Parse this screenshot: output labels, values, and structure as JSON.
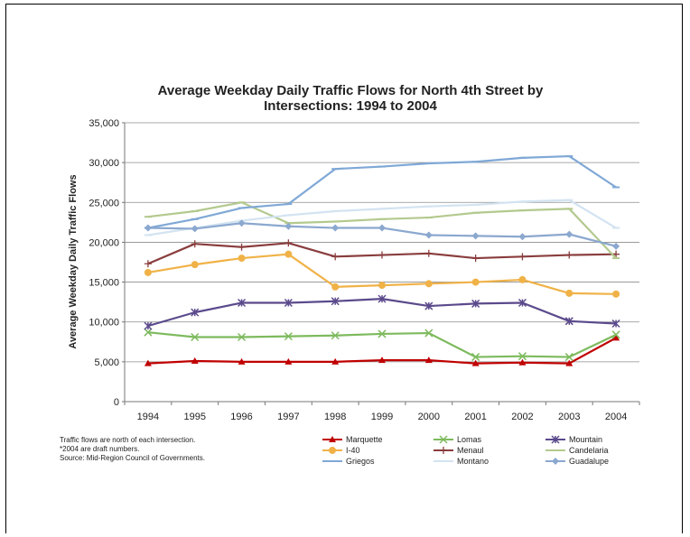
{
  "chart_data": {
    "type": "line",
    "title": [
      "Average Weekday Daily Traffic Flows for North 4th Street by",
      "Intersections: 1994 to 2004"
    ],
    "xlabel": "",
    "ylabel": "Average Weekday Daily Traffic Flows",
    "ylim": [
      0,
      35000
    ],
    "yticks": [
      "0",
      "5,000",
      "10,000",
      "15,000",
      "20,000",
      "25,000",
      "30,000",
      "35,000"
    ],
    "x": [
      "1994",
      "1995",
      "1996",
      "1997",
      "1998",
      "1999",
      "2000",
      "2001",
      "2002",
      "2003",
      "2004"
    ],
    "grid": true,
    "legend": "bottom",
    "series": [
      {
        "name": "Marquette",
        "color": "#c00000",
        "marker": "triangle",
        "values": [
          4800,
          5100,
          5000,
          5000,
          5000,
          5200,
          5200,
          4800,
          4900,
          4800,
          8000
        ]
      },
      {
        "name": "Lomas",
        "color": "#7dba5d",
        "marker": "x",
        "values": [
          8700,
          8100,
          8100,
          8200,
          8300,
          8500,
          8600,
          5600,
          5700,
          5600,
          8400
        ]
      },
      {
        "name": "Mountain",
        "color": "#5b4a8c",
        "marker": "star",
        "values": [
          9500,
          11200,
          12400,
          12400,
          12600,
          12900,
          12000,
          12300,
          12400,
          10100,
          9800
        ]
      },
      {
        "name": "I-40",
        "color": "#f0b247",
        "marker": "circle",
        "values": [
          16200,
          17200,
          18000,
          18500,
          14400,
          14600,
          14800,
          15000,
          15300,
          13600,
          13500
        ]
      },
      {
        "name": "Menaul",
        "color": "#8a3d3d",
        "marker": "plus",
        "values": [
          17300,
          19800,
          19400,
          19900,
          18200,
          18400,
          18600,
          18000,
          18200,
          18400,
          18500
        ]
      },
      {
        "name": "Candelaria",
        "color": "#b3c98e",
        "marker": "dash",
        "values": [
          23200,
          23900,
          25000,
          22400,
          22600,
          22900,
          23100,
          23700,
          24000,
          24200,
          18000
        ]
      },
      {
        "name": "Griegos",
        "color": "#7fa8d6",
        "marker": "dash",
        "values": [
          21800,
          22900,
          24300,
          24800,
          29200,
          29500,
          29900,
          30100,
          30600,
          30800,
          26900
        ]
      },
      {
        "name": "Montano",
        "color": "#d3e3f1",
        "marker": "dash",
        "values": [
          20900,
          21800,
          22700,
          23400,
          23900,
          24200,
          24500,
          24700,
          25100,
          25300,
          21800
        ]
      },
      {
        "name": "Guadalupe",
        "color": "#8ba8cf",
        "marker": "diamond",
        "values": [
          21800,
          21700,
          22400,
          22000,
          21800,
          21800,
          20900,
          20800,
          20700,
          21000,
          19500
        ]
      }
    ]
  },
  "notes": [
    "Traffic flows are north of each intersection.",
    "*2004 are draft numbers.",
    "Source: Mid-Region Council of Governments."
  ]
}
